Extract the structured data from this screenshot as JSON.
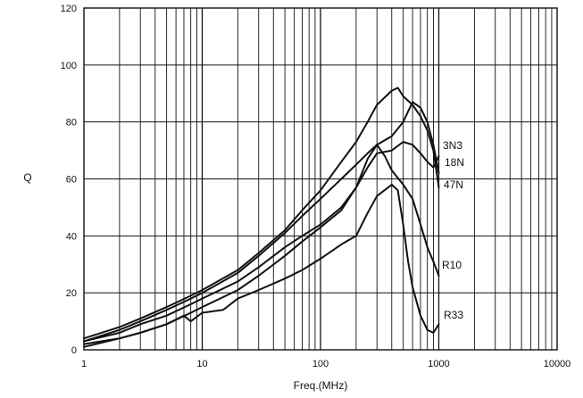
{
  "chart_data": {
    "type": "line",
    "title": "",
    "xlabel": "Freq.(MHz)",
    "ylabel": "Q",
    "x_scale": "log",
    "xlim": [
      1,
      10000
    ],
    "ylim": [
      0,
      120
    ],
    "grid": true,
    "x_ticks": [
      "1",
      "10",
      "100",
      "1000",
      "10000"
    ],
    "y_ticks": [
      "0",
      "20",
      "40",
      "60",
      "80",
      "100",
      "120"
    ],
    "series": [
      {
        "name": "3N3",
        "x": [
          1,
          2,
          3,
          5,
          8,
          10,
          20,
          30,
          50,
          70,
          100,
          150,
          200,
          250,
          300,
          400,
          450,
          500,
          600,
          700,
          800,
          900,
          1000
        ],
        "y": [
          4,
          8,
          11,
          15,
          19,
          21,
          28,
          34,
          42,
          49,
          56,
          66,
          73,
          80,
          86,
          91,
          92,
          89,
          86,
          82,
          77,
          70,
          57
        ]
      },
      {
        "name": "18N",
        "x": [
          1,
          2,
          3,
          5,
          8,
          10,
          20,
          30,
          50,
          70,
          100,
          150,
          200,
          250,
          300,
          400,
          500,
          600,
          700,
          800,
          900,
          1000
        ],
        "y": [
          3,
          7,
          10,
          14,
          18,
          20,
          27,
          33,
          41,
          47,
          53,
          60,
          65,
          69,
          72,
          75,
          80,
          87,
          85,
          80,
          72,
          62
        ]
      },
      {
        "name": "47N",
        "x": [
          1,
          2,
          3,
          5,
          8,
          10,
          20,
          30,
          50,
          70,
          100,
          150,
          200,
          250,
          300,
          400,
          500,
          600,
          700,
          800,
          900,
          1000
        ],
        "y": [
          3,
          6,
          9,
          12,
          16,
          18,
          24,
          29,
          36,
          40,
          44,
          50,
          57,
          64,
          69,
          70,
          73,
          72,
          69,
          66,
          64,
          68
        ]
      },
      {
        "name": "R10",
        "x": [
          1,
          2,
          3,
          5,
          8,
          10,
          20,
          30,
          50,
          70,
          100,
          150,
          200,
          250,
          300,
          350,
          400,
          500,
          600,
          700,
          800,
          900,
          1000
        ],
        "y": [
          2,
          4,
          6,
          9,
          13,
          15,
          21,
          26,
          33,
          38,
          43,
          49,
          57,
          67,
          72,
          68,
          63,
          58,
          53,
          44,
          36,
          31,
          26
        ]
      },
      {
        "name": "R33",
        "x": [
          1,
          2,
          3,
          5,
          7,
          8,
          10,
          15,
          20,
          30,
          50,
          70,
          100,
          150,
          200,
          250,
          300,
          400,
          450,
          500,
          550,
          600,
          700,
          800,
          900,
          1000
        ],
        "y": [
          1,
          4,
          6,
          9,
          12,
          10,
          13,
          14,
          18,
          21,
          25,
          28,
          32,
          37,
          40,
          48,
          54,
          58,
          56,
          44,
          31,
          22,
          12,
          7,
          6,
          9
        ]
      }
    ],
    "series_labels": [
      {
        "text": "3N3",
        "series": "3N3"
      },
      {
        "text": "18N",
        "series": "18N"
      },
      {
        "text": "47N",
        "series": "47N"
      },
      {
        "text": "R10",
        "series": "R10"
      },
      {
        "text": "R33",
        "series": "R33"
      }
    ]
  }
}
